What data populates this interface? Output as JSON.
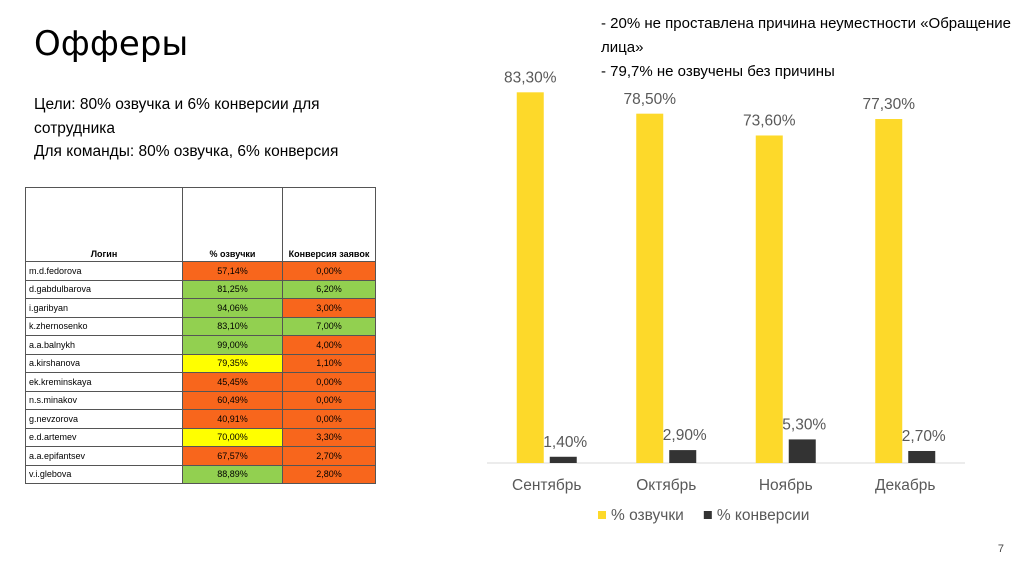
{
  "header": {
    "title": "Офферы",
    "goals": [
      "Цели: 80% озвучка и 6% конверсии для сотрудника",
      "Для команды: 80% озвучка, 6% конверсия"
    ]
  },
  "notes": [
    "- 20% не проставлена причина неуместности «Обращение лица»",
    "- 79,7% не озвучены без причины"
  ],
  "table": {
    "columns": [
      "Логин",
      "% озвучки",
      "Конверсия заявок"
    ],
    "rows": [
      [
        "m.d.fedorova",
        "57,14%",
        "0,00%"
      ],
      [
        "d.gabdulbarova",
        "81,25%",
        "6,20%"
      ],
      [
        "i.garibyan",
        "94,06%",
        "3,00%"
      ],
      [
        "k.zhernosenko",
        "83,10%",
        "7,00%"
      ],
      [
        "a.a.balnykh",
        "99,00%",
        "4,00%"
      ],
      [
        "a.kirshanova",
        "79,35%",
        "1,10%"
      ],
      [
        "ek.kreminskaya",
        "45,45%",
        "0,00%"
      ],
      [
        "n.s.minakov",
        "60,49%",
        "0,00%"
      ],
      [
        "g.nevzorova",
        "40,91%",
        "0,00%"
      ],
      [
        "e.d.artemev",
        "70,00%",
        "3,30%"
      ],
      [
        "a.a.epifantsev",
        "67,57%",
        "2,70%"
      ],
      [
        "v.i.glebova",
        "88,89%",
        "2,80%"
      ]
    ],
    "cell_colors": [
      [
        "#f8661c",
        "#f8661c"
      ],
      [
        "#92d050",
        "#92d050"
      ],
      [
        "#92d050",
        "#f8661c"
      ],
      [
        "#92d050",
        "#92d050"
      ],
      [
        "#92d050",
        "#f8661c"
      ],
      [
        "#ffff00",
        "#f8661c"
      ],
      [
        "#f8661c",
        "#f8661c"
      ],
      [
        "#f8661c",
        "#f8661c"
      ],
      [
        "#f8661c",
        "#f8661c"
      ],
      [
        "#ffff00",
        "#f8661c"
      ],
      [
        "#f8661c",
        "#f8661c"
      ],
      [
        "#92d050",
        "#f8661c"
      ]
    ]
  },
  "chart_data": {
    "type": "bar",
    "categories": [
      "Сентябрь",
      "Октябрь",
      "Ноябрь",
      "Декабрь"
    ],
    "series": [
      {
        "name": "% озвучки",
        "color": "#fdd92a",
        "values": [
          83.3,
          78.5,
          73.6,
          77.3
        ],
        "value_labels": [
          "83,30%",
          "78,50%",
          "73,60%",
          "77,30%"
        ]
      },
      {
        "name": "% конверсии",
        "color": "#333333",
        "values": [
          1.4,
          2.9,
          5.3,
          2.7
        ],
        "value_labels": [
          "1,40%",
          "2,90%",
          "5,30%",
          "2,70%"
        ]
      }
    ],
    "legend": "bottom"
  },
  "page_number": "7"
}
